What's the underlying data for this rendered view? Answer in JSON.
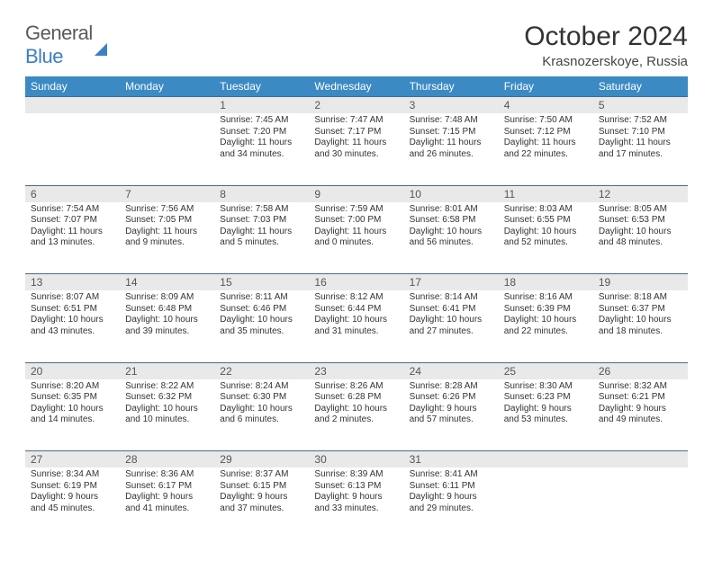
{
  "brand": {
    "part1": "General",
    "part2": "Blue"
  },
  "title": "October 2024",
  "location": "Krasnozerskoye, Russia",
  "colors": {
    "header_bg": "#3b8ac4",
    "header_text": "#ffffff",
    "daynum_bg": "#e9e9e9",
    "border": "#4a6a8a",
    "text": "#333333"
  },
  "dayNames": [
    "Sunday",
    "Monday",
    "Tuesday",
    "Wednesday",
    "Thursday",
    "Friday",
    "Saturday"
  ],
  "weeks": [
    [
      null,
      null,
      {
        "n": "1",
        "sr": "7:45 AM",
        "ss": "7:20 PM",
        "dl": "11 hours and 34 minutes."
      },
      {
        "n": "2",
        "sr": "7:47 AM",
        "ss": "7:17 PM",
        "dl": "11 hours and 30 minutes."
      },
      {
        "n": "3",
        "sr": "7:48 AM",
        "ss": "7:15 PM",
        "dl": "11 hours and 26 minutes."
      },
      {
        "n": "4",
        "sr": "7:50 AM",
        "ss": "7:12 PM",
        "dl": "11 hours and 22 minutes."
      },
      {
        "n": "5",
        "sr": "7:52 AM",
        "ss": "7:10 PM",
        "dl": "11 hours and 17 minutes."
      }
    ],
    [
      {
        "n": "6",
        "sr": "7:54 AM",
        "ss": "7:07 PM",
        "dl": "11 hours and 13 minutes."
      },
      {
        "n": "7",
        "sr": "7:56 AM",
        "ss": "7:05 PM",
        "dl": "11 hours and 9 minutes."
      },
      {
        "n": "8",
        "sr": "7:58 AM",
        "ss": "7:03 PM",
        "dl": "11 hours and 5 minutes."
      },
      {
        "n": "9",
        "sr": "7:59 AM",
        "ss": "7:00 PM",
        "dl": "11 hours and 0 minutes."
      },
      {
        "n": "10",
        "sr": "8:01 AM",
        "ss": "6:58 PM",
        "dl": "10 hours and 56 minutes."
      },
      {
        "n": "11",
        "sr": "8:03 AM",
        "ss": "6:55 PM",
        "dl": "10 hours and 52 minutes."
      },
      {
        "n": "12",
        "sr": "8:05 AM",
        "ss": "6:53 PM",
        "dl": "10 hours and 48 minutes."
      }
    ],
    [
      {
        "n": "13",
        "sr": "8:07 AM",
        "ss": "6:51 PM",
        "dl": "10 hours and 43 minutes."
      },
      {
        "n": "14",
        "sr": "8:09 AM",
        "ss": "6:48 PM",
        "dl": "10 hours and 39 minutes."
      },
      {
        "n": "15",
        "sr": "8:11 AM",
        "ss": "6:46 PM",
        "dl": "10 hours and 35 minutes."
      },
      {
        "n": "16",
        "sr": "8:12 AM",
        "ss": "6:44 PM",
        "dl": "10 hours and 31 minutes."
      },
      {
        "n": "17",
        "sr": "8:14 AM",
        "ss": "6:41 PM",
        "dl": "10 hours and 27 minutes."
      },
      {
        "n": "18",
        "sr": "8:16 AM",
        "ss": "6:39 PM",
        "dl": "10 hours and 22 minutes."
      },
      {
        "n": "19",
        "sr": "8:18 AM",
        "ss": "6:37 PM",
        "dl": "10 hours and 18 minutes."
      }
    ],
    [
      {
        "n": "20",
        "sr": "8:20 AM",
        "ss": "6:35 PM",
        "dl": "10 hours and 14 minutes."
      },
      {
        "n": "21",
        "sr": "8:22 AM",
        "ss": "6:32 PM",
        "dl": "10 hours and 10 minutes."
      },
      {
        "n": "22",
        "sr": "8:24 AM",
        "ss": "6:30 PM",
        "dl": "10 hours and 6 minutes."
      },
      {
        "n": "23",
        "sr": "8:26 AM",
        "ss": "6:28 PM",
        "dl": "10 hours and 2 minutes."
      },
      {
        "n": "24",
        "sr": "8:28 AM",
        "ss": "6:26 PM",
        "dl": "9 hours and 57 minutes."
      },
      {
        "n": "25",
        "sr": "8:30 AM",
        "ss": "6:23 PM",
        "dl": "9 hours and 53 minutes."
      },
      {
        "n": "26",
        "sr": "8:32 AM",
        "ss": "6:21 PM",
        "dl": "9 hours and 49 minutes."
      }
    ],
    [
      {
        "n": "27",
        "sr": "8:34 AM",
        "ss": "6:19 PM",
        "dl": "9 hours and 45 minutes."
      },
      {
        "n": "28",
        "sr": "8:36 AM",
        "ss": "6:17 PM",
        "dl": "9 hours and 41 minutes."
      },
      {
        "n": "29",
        "sr": "8:37 AM",
        "ss": "6:15 PM",
        "dl": "9 hours and 37 minutes."
      },
      {
        "n": "30",
        "sr": "8:39 AM",
        "ss": "6:13 PM",
        "dl": "9 hours and 33 minutes."
      },
      {
        "n": "31",
        "sr": "8:41 AM",
        "ss": "6:11 PM",
        "dl": "9 hours and 29 minutes."
      },
      null,
      null
    ]
  ],
  "labels": {
    "sunrise": "Sunrise: ",
    "sunset": "Sunset: ",
    "daylight": "Daylight: "
  }
}
